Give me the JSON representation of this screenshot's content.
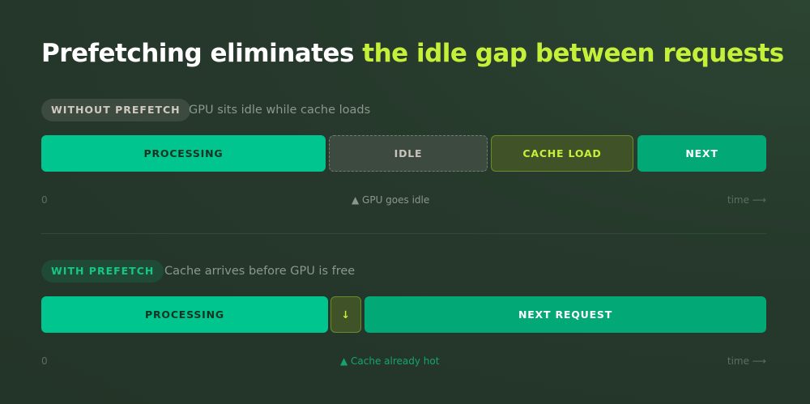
{
  "title": {
    "part1": "Prefetching eliminates ",
    "part2": "the idle gap between requests"
  },
  "without": {
    "badge": "WITHOUT PREFETCH",
    "subtitle": "GPU sits idle while cache loads",
    "segments": [
      "PROCESSING",
      "IDLE",
      "CACHE LOAD",
      "NEXT"
    ],
    "axis_start": "0",
    "marker": "▲ GPU goes idle",
    "axis_end": "time ⟶"
  },
  "with": {
    "badge": "WITH PREFETCH",
    "subtitle": "Cache arrives before GPU is free",
    "segments": [
      "PROCESSING",
      "↓",
      "NEXT REQUEST"
    ],
    "axis_start": "0",
    "marker": "▲ Cache already hot",
    "axis_end": "time ⟶"
  },
  "colors": {
    "accent": "#c5f03a",
    "processing": "#00c58e",
    "next": "#03a877",
    "idle": "#3c4a3f",
    "cache": "#3f5228"
  }
}
